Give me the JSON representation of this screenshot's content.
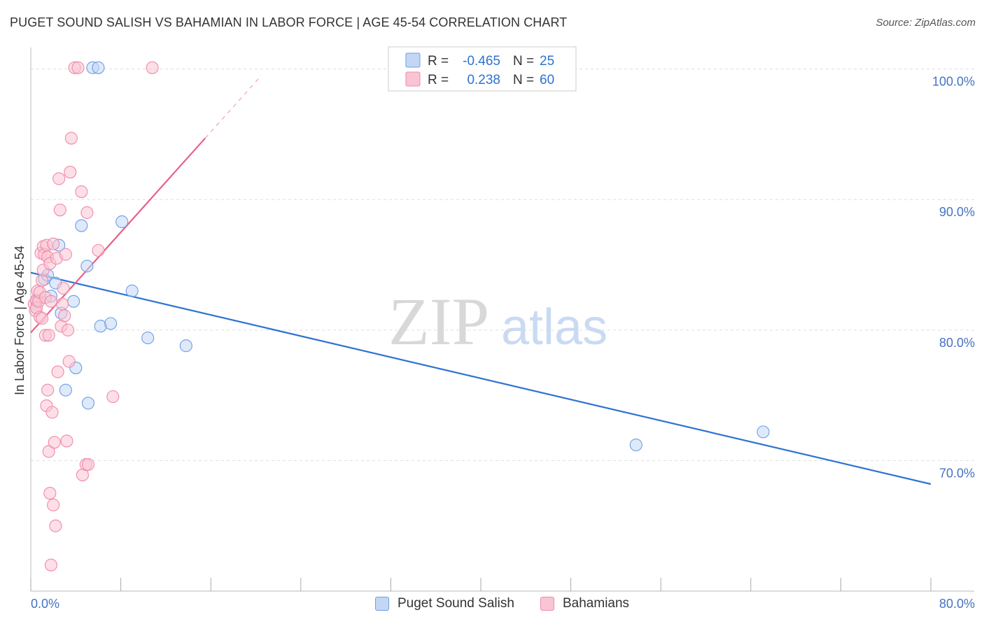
{
  "header": {
    "title": "PUGET SOUND SALISH VS BAHAMIAN IN LABOR FORCE | AGE 45-54 CORRELATION CHART",
    "source": "Source: ZipAtlas.com"
  },
  "watermark": {
    "part1": "ZIP",
    "part2": "atlas"
  },
  "colors": {
    "blue": "#6d9ee3",
    "blue_fill": "#c3d7f5",
    "blue_line": "#2d72d2",
    "pink": "#f08aaa",
    "pink_fill": "#f9c4d3",
    "pink_line": "#e8608a",
    "axis_label": "#4472c4",
    "grid": "#dddddd"
  },
  "legend_top": [
    {
      "r_label": "R =",
      "r_value": "-0.465",
      "n_label": "N =",
      "n_value": "25"
    },
    {
      "r_label": "R =",
      "r_value": "0.238",
      "n_label": "N =",
      "n_value": "60"
    }
  ],
  "legend_bottom": [
    "Puget Sound Salish",
    "Bahamians"
  ],
  "chart_data": {
    "type": "scatter",
    "title": "PUGET SOUND SALISH VS BAHAMIAN IN LABOR FORCE | AGE 45-54 CORRELATION CHART",
    "xlabel": "",
    "ylabel": "In Labor Force | Age 45-54",
    "xlim": [
      0,
      80
    ],
    "ylim": [
      60.0,
      101.0
    ],
    "x_ticks": [
      "0.0%",
      "80.0%"
    ],
    "y_ticks": [
      {
        "value": 100,
        "label": "100.0%"
      },
      {
        "value": 90,
        "label": "90.0%"
      },
      {
        "value": 80,
        "label": "80.0%"
      },
      {
        "value": 70,
        "label": "70.0%"
      }
    ],
    "series": [
      {
        "name": "Puget Sound Salish",
        "color_key": "blue",
        "R": -0.465,
        "N": 25,
        "trend": {
          "x0": 0.0,
          "y0": 84.4,
          "x1": 80.0,
          "y1": 68.2,
          "solid_to": 80.0,
          "dashed_to": 80.0
        },
        "points": [
          [
            0.5,
            82.2
          ],
          [
            1.2,
            83.9
          ],
          [
            1.5,
            84.2
          ],
          [
            1.8,
            82.6
          ],
          [
            2.2,
            83.6
          ],
          [
            2.5,
            86.5
          ],
          [
            2.7,
            81.3
          ],
          [
            3.1,
            75.4
          ],
          [
            3.8,
            82.2
          ],
          [
            4.0,
            77.1
          ],
          [
            4.5,
            88.0
          ],
          [
            5.0,
            84.9
          ],
          [
            5.1,
            74.4
          ],
          [
            5.5,
            100.1
          ],
          [
            6.0,
            100.1
          ],
          [
            6.2,
            80.3
          ],
          [
            7.1,
            80.5
          ],
          [
            8.1,
            88.3
          ],
          [
            9.0,
            83.0
          ],
          [
            10.4,
            79.4
          ],
          [
            13.8,
            78.8
          ],
          [
            53.8,
            71.2
          ],
          [
            65.1,
            72.2
          ]
        ]
      },
      {
        "name": "Bahamians",
        "color_key": "pink",
        "R": 0.238,
        "N": 60,
        "trend": {
          "x0": 0.0,
          "y0": 79.8,
          "x1": 15.5,
          "y1": 94.7,
          "solid_to": 15.5,
          "dashed_to": 20.5
        },
        "points": [
          [
            0.3,
            82.0
          ],
          [
            0.4,
            81.5
          ],
          [
            0.5,
            82.3
          ],
          [
            0.5,
            81.7
          ],
          [
            0.6,
            83.0
          ],
          [
            0.7,
            82.2
          ],
          [
            0.8,
            81.0
          ],
          [
            0.8,
            82.9
          ],
          [
            0.9,
            85.9
          ],
          [
            1.0,
            80.9
          ],
          [
            1.0,
            83.8
          ],
          [
            1.1,
            86.4
          ],
          [
            1.1,
            84.6
          ],
          [
            1.2,
            85.8
          ],
          [
            1.3,
            82.5
          ],
          [
            1.3,
            79.6
          ],
          [
            1.4,
            86.5
          ],
          [
            1.4,
            74.2
          ],
          [
            1.5,
            85.6
          ],
          [
            1.5,
            75.4
          ],
          [
            1.6,
            79.6
          ],
          [
            1.6,
            70.7
          ],
          [
            1.7,
            85.1
          ],
          [
            1.7,
            67.5
          ],
          [
            1.8,
            82.2
          ],
          [
            1.8,
            62.0
          ],
          [
            1.9,
            73.7
          ],
          [
            2.0,
            86.6
          ],
          [
            2.0,
            66.6
          ],
          [
            2.1,
            71.4
          ],
          [
            2.2,
            65.0
          ],
          [
            2.3,
            85.5
          ],
          [
            2.4,
            76.8
          ],
          [
            2.5,
            91.6
          ],
          [
            2.6,
            89.2
          ],
          [
            2.7,
            80.3
          ],
          [
            2.8,
            82.0
          ],
          [
            2.9,
            83.2
          ],
          [
            3.0,
            81.1
          ],
          [
            3.1,
            85.8
          ],
          [
            3.2,
            71.5
          ],
          [
            3.3,
            80.0
          ],
          [
            3.4,
            77.6
          ],
          [
            3.5,
            92.1
          ],
          [
            3.6,
            94.7
          ],
          [
            3.9,
            100.1
          ],
          [
            4.2,
            100.1
          ],
          [
            4.5,
            90.6
          ],
          [
            4.6,
            68.9
          ],
          [
            4.9,
            69.7
          ],
          [
            5.0,
            89.0
          ],
          [
            5.1,
            69.7
          ],
          [
            6.0,
            86.1
          ],
          [
            7.3,
            74.9
          ],
          [
            10.8,
            100.1
          ]
        ]
      }
    ]
  }
}
